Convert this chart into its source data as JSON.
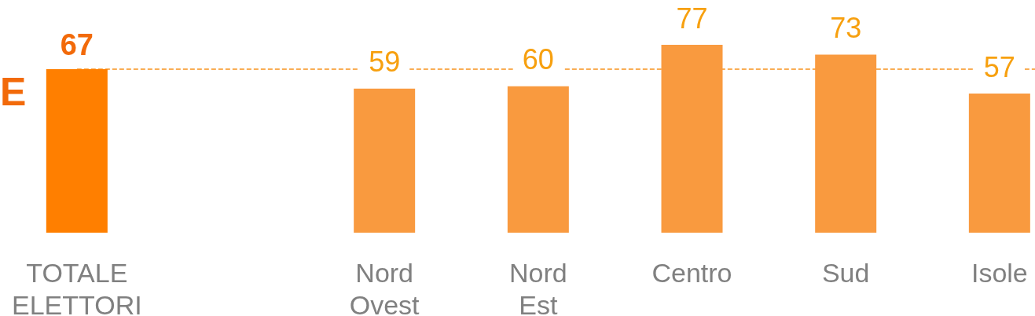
{
  "chart_data": {
    "type": "bar",
    "categories": [
      "TOTALE ELETTORI",
      null,
      "Nord Ovest",
      "Nord Est",
      "Centro",
      "Sud",
      "Isole"
    ],
    "values": [
      67,
      null,
      59,
      60,
      77,
      73,
      57
    ],
    "colors": [
      "#ff7f00",
      null,
      "#f99a3f",
      "#f99a3f",
      "#f99a3f",
      "#f99a3f",
      "#f99a3f"
    ],
    "data_labels": true,
    "ref_lines": [
      {
        "axis": "y",
        "value": 67,
        "color": "#f7931e",
        "line_style": "dashed"
      }
    ],
    "annotations": [
      "E"
    ],
    "tick_labels": "x",
    "grid": false
  }
}
